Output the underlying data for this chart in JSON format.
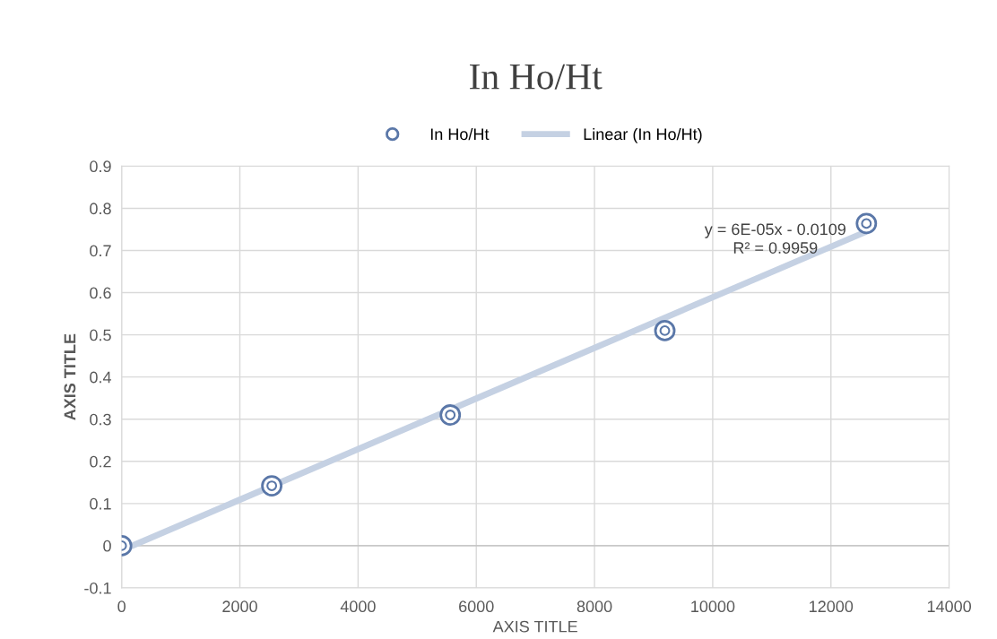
{
  "chart_data": {
    "type": "scatter",
    "title": "In Ho/Ht",
    "xlabel": "AXIS TITLE",
    "ylabel": "AXIS TITLE",
    "series": [
      {
        "name": "In Ho/Ht",
        "color": "#5a77a8",
        "marker": "circle",
        "x": [
          0,
          2540,
          5560,
          9190,
          12600
        ],
        "values": [
          0.0,
          0.142,
          0.31,
          0.51,
          0.764
        ]
      },
      {
        "name": "Linear (In Ho/Ht)",
        "type": "line",
        "color": "#c5d1e3",
        "line_style": "solid",
        "x": [
          0,
          12600
        ],
        "values": [
          -0.011,
          0.745
        ]
      }
    ],
    "annotations": [
      "y = 6E-05x - 0.0109\nR² = 0.9959"
    ],
    "xlim": [
      0,
      14000
    ],
    "xticks": [
      0,
      2000,
      4000,
      6000,
      8000,
      10000,
      12000,
      14000
    ],
    "ylim": [
      -0.1,
      0.9
    ],
    "yticks": [
      -0.1,
      0,
      0.1,
      0.2,
      0.3,
      0.4,
      0.5,
      0.6,
      0.7,
      0.8,
      0.9
    ],
    "grid": true,
    "legend": "top"
  }
}
